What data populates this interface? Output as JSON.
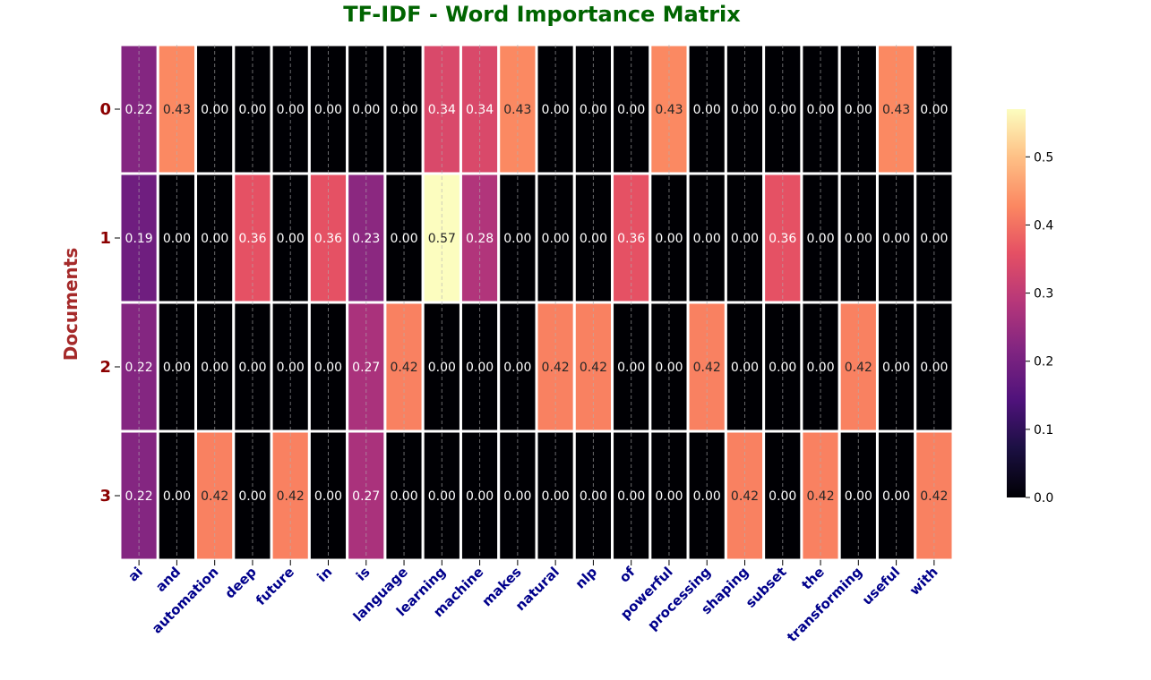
{
  "chart_data": {
    "type": "heatmap",
    "title": "TF-IDF - Word Importance Matrix",
    "ylabel": "Documents",
    "xlabel": "",
    "rows": [
      "0",
      "1",
      "2",
      "3"
    ],
    "columns": [
      "ai",
      "and",
      "automation",
      "deep",
      "future",
      "in",
      "is",
      "language",
      "learning",
      "machine",
      "makes",
      "natural",
      "nlp",
      "of",
      "powerful",
      "processing",
      "shaping",
      "subset",
      "the",
      "transforming",
      "useful",
      "with"
    ],
    "values": [
      [
        0.22,
        0.43,
        0.0,
        0.0,
        0.0,
        0.0,
        0.0,
        0.0,
        0.34,
        0.34,
        0.43,
        0.0,
        0.0,
        0.0,
        0.43,
        0.0,
        0.0,
        0.0,
        0.0,
        0.0,
        0.43,
        0.0
      ],
      [
        0.19,
        0.0,
        0.0,
        0.36,
        0.0,
        0.36,
        0.23,
        0.0,
        0.57,
        0.28,
        0.0,
        0.0,
        0.0,
        0.36,
        0.0,
        0.0,
        0.0,
        0.36,
        0.0,
        0.0,
        0.0,
        0.0
      ],
      [
        0.22,
        0.0,
        0.0,
        0.0,
        0.0,
        0.0,
        0.27,
        0.42,
        0.0,
        0.0,
        0.0,
        0.42,
        0.42,
        0.0,
        0.0,
        0.42,
        0.0,
        0.0,
        0.0,
        0.42,
        0.0,
        0.0
      ],
      [
        0.22,
        0.0,
        0.42,
        0.0,
        0.42,
        0.0,
        0.27,
        0.0,
        0.0,
        0.0,
        0.0,
        0.0,
        0.0,
        0.0,
        0.0,
        0.0,
        0.42,
        0.0,
        0.42,
        0.0,
        0.0,
        0.42
      ]
    ],
    "value_format": "0.00",
    "colormap": "magma",
    "colorbar": {
      "range": [
        0.0,
        0.57
      ],
      "ticks": [
        "0.0",
        "0.1",
        "0.2",
        "0.3",
        "0.4",
        "0.5"
      ]
    },
    "grid": true,
    "colors": {
      "title": "#006400",
      "ylabel": "#a52a2a",
      "yticks": "#8b0000",
      "xticks": "#00008b",
      "cell_border": "#ffffff"
    }
  }
}
